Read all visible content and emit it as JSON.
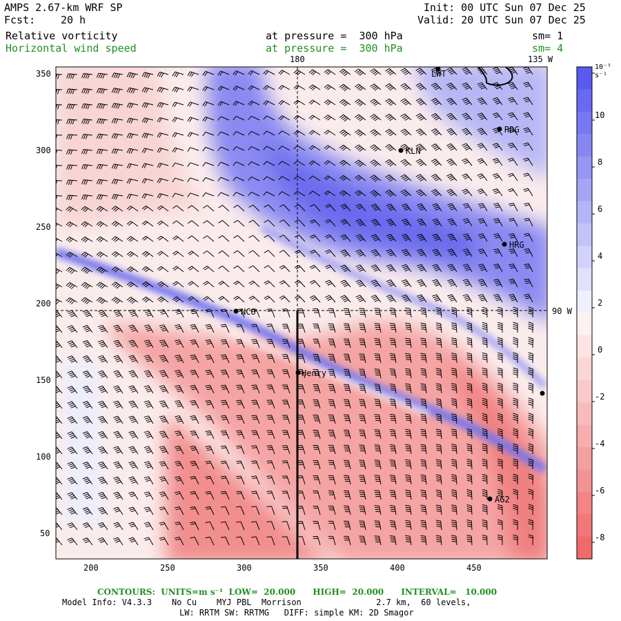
{
  "header": {
    "model": "AMPS 2.67-km WRF SP",
    "fcst_label": "Fcst:",
    "fcst_value": "20 h",
    "init": "Init: 00 UTC Sun 07 Dec 25",
    "valid": "Valid: 20 UTC Sun 07 Dec 25",
    "field1": "Relative vorticity",
    "field1_level": "at pressure =  300 hPa",
    "field1_sm": "sm= 1",
    "field2": "Horizontal wind speed",
    "field2_level": "at pressure =  300 hPa",
    "field2_sm": "sm= 4"
  },
  "map": {
    "lon_labels": [
      "180",
      "135 W",
      "90 W"
    ],
    "x_ticks": [
      "200",
      "250",
      "300",
      "350",
      "400",
      "450"
    ],
    "y_ticks": [
      "350",
      "300",
      "250",
      "200",
      "150",
      "100",
      "50"
    ],
    "stations": [
      {
        "name": "LWT"
      },
      {
        "name": "RDG"
      },
      {
        "name": "KLN"
      },
      {
        "name": "HRG"
      },
      {
        "name": "NCO"
      },
      {
        "name": "Henry"
      },
      {
        "name": "AG2"
      },
      {
        "name": ""
      }
    ]
  },
  "colorbar": {
    "unit": "10⁻⁵ s⁻¹",
    "labels": [
      "10",
      "8",
      "6",
      "4",
      "2",
      "0",
      "-2",
      "-4",
      "-6",
      "-8"
    ],
    "colors": {
      "pos_max": "#5a5af0",
      "neg_max": "#f06a6a",
      "zero": "#ffffff"
    }
  },
  "footer": {
    "contours": "CONTOURS:  UNITS=m s⁻¹  LOW=  20.000      HIGH=  20.000      INTERVAL=   10.000",
    "model_info": "Model Info: V4.3.3    No Cu    MYJ PBL  Morrison               2.7 km,  60 levels,",
    "physics": "LW: RRTM SW: RRTMG   DIFF: simple KM: 2D Smagor"
  }
}
